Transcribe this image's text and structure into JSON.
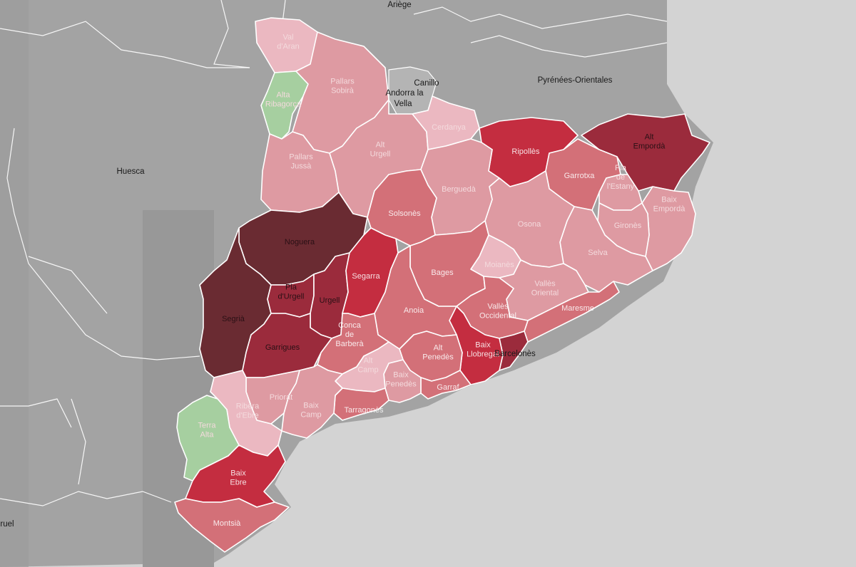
{
  "colors": {
    "sea": "#d3d3d3",
    "land": "#a3a3a3",
    "land_shade": "#989898",
    "andorra": "#b4b4b4",
    "scale": [
      "#a6cfa0",
      "#ebb8c1",
      "#de9aa2",
      "#d37078",
      "#c42d40",
      "#9b2b3c",
      "#6a2b32"
    ]
  },
  "places": {
    "ariege": "Ariège",
    "canillo": "Canillo",
    "andorra": "Andorra la Vella",
    "andorra_l1": "Andorra la",
    "andorra_l2": "Vella",
    "pyrenees": "Pyrénées-Orientales",
    "huesca": "Huesca",
    "teruel": "ruel",
    "barcelones": "Barcelonès"
  },
  "comarques": [
    {
      "id": "val-daran",
      "lines": [
        "Val",
        "d'Aran"
      ],
      "level": 1
    },
    {
      "id": "alta-ribagorca",
      "lines": [
        "Alta",
        "Ribagorça"
      ],
      "level": 0
    },
    {
      "id": "pallars-sobira",
      "lines": [
        "Pallars",
        "Sobirà"
      ],
      "level": 2
    },
    {
      "id": "pallars-jussa",
      "lines": [
        "Pallars",
        "Jussà"
      ],
      "level": 2
    },
    {
      "id": "alt-urgell",
      "lines": [
        "Alt",
        "Urgell"
      ],
      "level": 2
    },
    {
      "id": "cerdanya",
      "lines": [
        "Cerdanya"
      ],
      "level": 1
    },
    {
      "id": "ripolles",
      "lines": [
        "Ripollès"
      ],
      "level": 4
    },
    {
      "id": "alt-emporda",
      "lines": [
        "Alt",
        "Empordà"
      ],
      "level": 5
    },
    {
      "id": "garrotxa",
      "lines": [
        "Garrotxa"
      ],
      "level": 3
    },
    {
      "id": "pla-de-lestany",
      "lines": [
        "Pla",
        "de",
        "l'Estany"
      ],
      "level": 2
    },
    {
      "id": "baix-emporda",
      "lines": [
        "Baix",
        "Empordà"
      ],
      "level": 2
    },
    {
      "id": "girones",
      "lines": [
        "Gironès"
      ],
      "level": 2
    },
    {
      "id": "selva",
      "lines": [
        "Selva"
      ],
      "level": 2
    },
    {
      "id": "osona",
      "lines": [
        "Osona"
      ],
      "level": 2
    },
    {
      "id": "bergueda",
      "lines": [
        "Berguedà"
      ],
      "level": 2
    },
    {
      "id": "solsones",
      "lines": [
        "Solsonès"
      ],
      "level": 3
    },
    {
      "id": "moianes",
      "lines": [
        "Moianès"
      ],
      "level": 1
    },
    {
      "id": "bages",
      "lines": [
        "Bages"
      ],
      "level": 3
    },
    {
      "id": "vallès-oriental",
      "lines": [
        "Vallès",
        "Oriental"
      ],
      "level": 2
    },
    {
      "id": "maresme",
      "lines": [
        "Maresme"
      ],
      "level": 3
    },
    {
      "id": "vallès-occidental",
      "lines": [
        "Vallès",
        "Occidental"
      ],
      "level": 3
    },
    {
      "id": "barcelones",
      "lines": [],
      "level": 5
    },
    {
      "id": "baix-llobregat",
      "lines": [
        "Baix",
        "Llobregat"
      ],
      "level": 4
    },
    {
      "id": "noguera",
      "lines": [
        "Noguera"
      ],
      "level": 6
    },
    {
      "id": "segria",
      "lines": [
        "Segrià"
      ],
      "level": 6
    },
    {
      "id": "pla-durgell",
      "lines": [
        "Pla",
        "d'Urgell"
      ],
      "level": 5
    },
    {
      "id": "urgell",
      "lines": [
        "Urgell"
      ],
      "level": 5
    },
    {
      "id": "segarra",
      "lines": [
        "Segarra"
      ],
      "level": 4
    },
    {
      "id": "garrigues",
      "lines": [
        "Garrigues"
      ],
      "level": 5
    },
    {
      "id": "anoia",
      "lines": [
        "Anoia"
      ],
      "level": 3
    },
    {
      "id": "conca-de-barbera",
      "lines": [
        "Conca",
        "de",
        "Barberà"
      ],
      "level": 3
    },
    {
      "id": "alt-penedes",
      "lines": [
        "Alt",
        "Penedès"
      ],
      "level": 3
    },
    {
      "id": "garraf",
      "lines": [
        "Garraf"
      ],
      "level": 3
    },
    {
      "id": "baix-penedes",
      "lines": [
        "Baix",
        "Penedès"
      ],
      "level": 2
    },
    {
      "id": "alt-camp",
      "lines": [
        "Alt",
        "Camp"
      ],
      "level": 1
    },
    {
      "id": "tarragones",
      "lines": [
        "Tarragonès"
      ],
      "level": 3
    },
    {
      "id": "baix-camp",
      "lines": [
        "Baix",
        "Camp"
      ],
      "level": 2
    },
    {
      "id": "priorat",
      "lines": [
        "Priorat"
      ],
      "level": 2
    },
    {
      "id": "ribera-debre",
      "lines": [
        "Ribera",
        "d'Ebre"
      ],
      "level": 1
    },
    {
      "id": "terra-alta",
      "lines": [
        "Terra",
        "Alta"
      ],
      "level": 0
    },
    {
      "id": "baix-ebre",
      "lines": [
        "Baix",
        "Ebre"
      ],
      "level": 4
    },
    {
      "id": "montsia",
      "lines": [
        "Montsià"
      ],
      "level": 3
    }
  ]
}
